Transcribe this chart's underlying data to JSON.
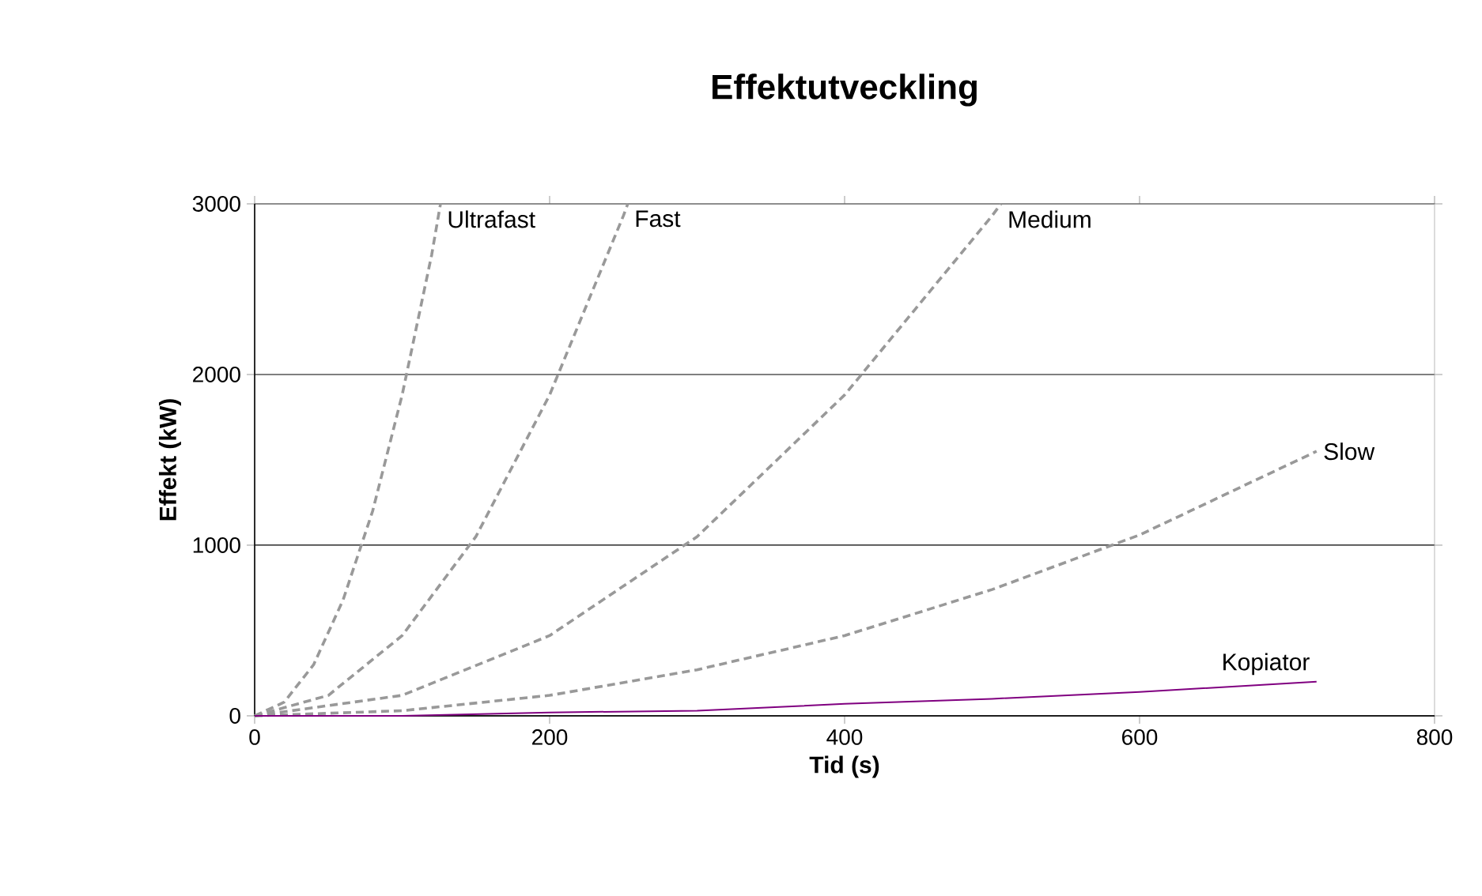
{
  "chart_data": {
    "type": "line",
    "title": "Effektutveckling",
    "xlabel": "Tid (s)",
    "ylabel": "Effekt (kW)",
    "xlim": [
      0,
      800
    ],
    "ylim": [
      0,
      3000
    ],
    "xticks": [
      0,
      200,
      400,
      600,
      800
    ],
    "yticks": [
      0,
      1000,
      2000,
      3000
    ],
    "grid": "y",
    "legend": false,
    "marker": "none",
    "series": [
      {
        "name": "Ultrafast",
        "color": "#999999",
        "line_style": "dashed",
        "x": [
          0,
          20,
          40,
          60,
          80,
          100,
          120,
          126
        ],
        "values": [
          0,
          80,
          300,
          680,
          1200,
          1880,
          2700,
          3000
        ]
      },
      {
        "name": "Fast",
        "color": "#999999",
        "line_style": "dashed",
        "x": [
          0,
          50,
          100,
          150,
          200,
          250,
          253
        ],
        "values": [
          0,
          120,
          470,
          1050,
          1880,
          2930,
          3000
        ]
      },
      {
        "name": "Medium",
        "color": "#999999",
        "line_style": "dashed",
        "x": [
          0,
          100,
          200,
          300,
          400,
          500,
          506
        ],
        "values": [
          0,
          120,
          470,
          1050,
          1880,
          2930,
          3000
        ]
      },
      {
        "name": "Slow",
        "color": "#999999",
        "line_style": "dashed",
        "x": [
          0,
          100,
          200,
          300,
          400,
          500,
          600,
          720
        ],
        "values": [
          0,
          30,
          120,
          270,
          470,
          740,
          1060,
          1550
        ]
      },
      {
        "name": "Kopiator",
        "color": "#800080",
        "line_style": "solid",
        "x": [
          0,
          100,
          200,
          300,
          400,
          500,
          600,
          720
        ],
        "values": [
          0,
          0,
          20,
          30,
          70,
          100,
          140,
          200
        ]
      }
    ]
  }
}
